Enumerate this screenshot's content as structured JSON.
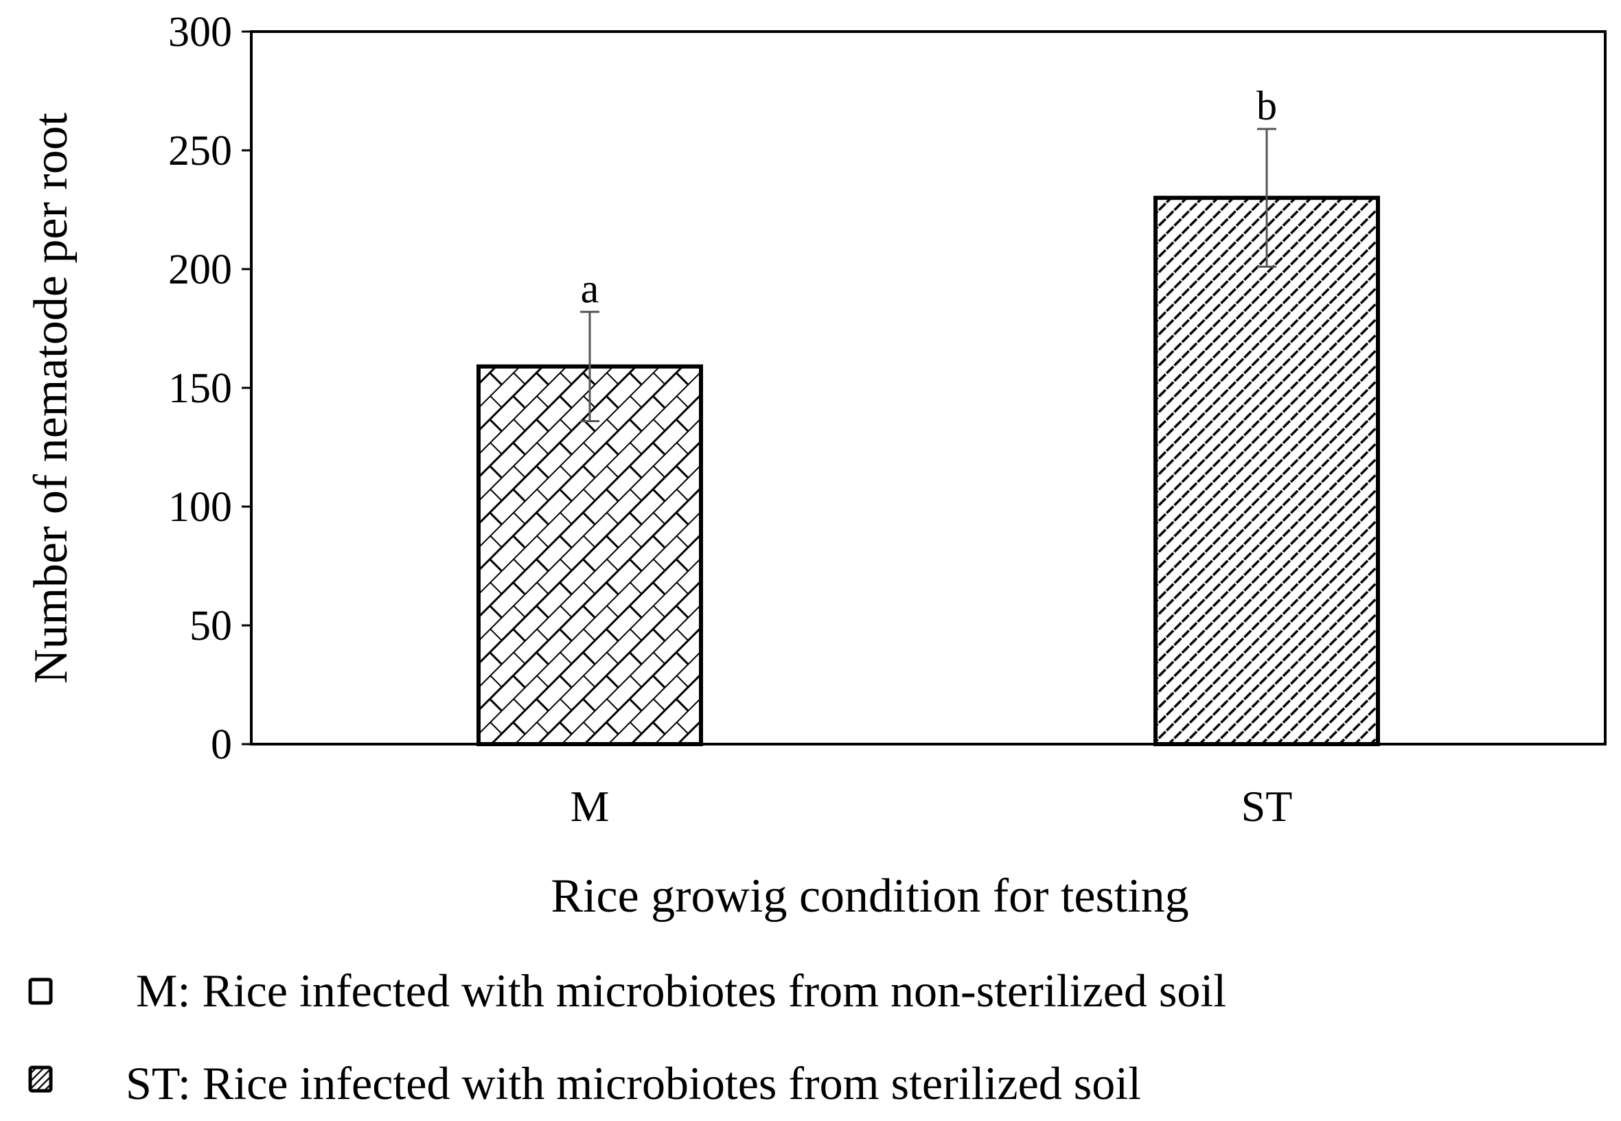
{
  "chart_data": {
    "type": "bar",
    "title": "",
    "xlabel": "Rice growig condition for testing",
    "ylabel": "Number of nematode per root",
    "ylim": [
      0,
      300
    ],
    "yticks": [
      0,
      50,
      100,
      150,
      200,
      250,
      300
    ],
    "categories": [
      "M",
      "ST"
    ],
    "values": [
      159,
      230
    ],
    "errors": [
      23,
      29
    ],
    "significance": [
      "a",
      "b"
    ],
    "patterns": [
      "brick",
      "diagonal"
    ],
    "grid": false,
    "legend": [
      {
        "text": "M: Rice infected with microbiotes from non-sterilized soil",
        "symbol": "open-square"
      },
      {
        "text": "ST: Rice infected with microbiotes from sterilized soil",
        "symbol": "hatched-square"
      }
    ]
  }
}
